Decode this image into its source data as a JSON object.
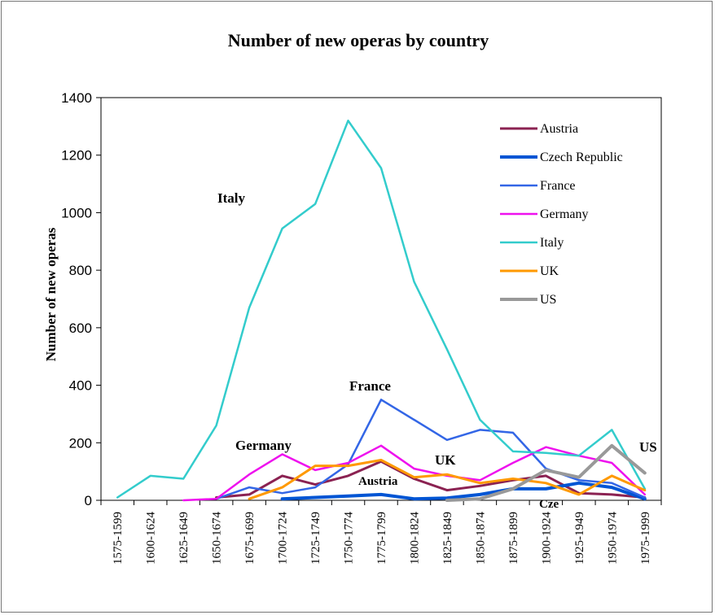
{
  "chart_data": {
    "type": "line",
    "title": "Number of new operas by country",
    "xlabel": "",
    "ylabel": "Number of new operas",
    "ylim": [
      0,
      1400
    ],
    "yticks": [
      0,
      200,
      400,
      600,
      800,
      1000,
      1200,
      1400
    ],
    "categories": [
      "1575-1599",
      "1600-1624",
      "1625-1649",
      "1650-1674",
      "1675-1699",
      "1700-1724",
      "1725-1749",
      "1750-1774",
      "1775-1799",
      "1800-1824",
      "1825-1849",
      "1850-1874",
      "1875-1899",
      "1900-1924",
      "1925-1949",
      "1950-1974",
      "1975-1999"
    ],
    "legend_position": "top-right",
    "grid": false,
    "series": [
      {
        "name": "Austria",
        "color": "#8B2252",
        "width": 3,
        "start": 3,
        "values": [
          null,
          null,
          null,
          10,
          20,
          85,
          55,
          85,
          135,
          75,
          35,
          50,
          70,
          85,
          25,
          20,
          10
        ]
      },
      {
        "name": "Czech Republic",
        "color": "#0055D4",
        "width": 4,
        "start": 5,
        "values": [
          null,
          null,
          null,
          null,
          null,
          5,
          10,
          15,
          20,
          5,
          8,
          20,
          40,
          40,
          60,
          45,
          5
        ]
      },
      {
        "name": "France",
        "color": "#3366E6",
        "width": 2.5,
        "start": 3,
        "values": [
          null,
          null,
          null,
          5,
          45,
          25,
          45,
          125,
          350,
          280,
          210,
          245,
          235,
          110,
          70,
          60,
          10
        ]
      },
      {
        "name": "Germany",
        "color": "#EE11EE",
        "width": 2.5,
        "start": 2,
        "values": [
          null,
          null,
          0,
          5,
          90,
          160,
          105,
          130,
          190,
          110,
          85,
          70,
          130,
          185,
          155,
          130,
          20
        ]
      },
      {
        "name": "Italy",
        "color": "#33CCCC",
        "width": 2.5,
        "start": 0,
        "values": [
          10,
          85,
          75,
          260,
          670,
          945,
          1030,
          1320,
          1155,
          760,
          525,
          280,
          170,
          165,
          155,
          245,
          40
        ]
      },
      {
        "name": "UK",
        "color": "#FF9900",
        "width": 3,
        "start": 4,
        "values": [
          null,
          null,
          null,
          null,
          5,
          45,
          120,
          120,
          140,
          80,
          90,
          60,
          75,
          60,
          20,
          85,
          35
        ]
      },
      {
        "name": "US",
        "color": "#999999",
        "width": 4,
        "start": 10,
        "values": [
          null,
          null,
          null,
          null,
          null,
          null,
          null,
          null,
          null,
          null,
          0,
          5,
          40,
          105,
          80,
          190,
          95
        ]
      }
    ],
    "annotations": [
      "Italy",
      "France",
      "Germany",
      "UK",
      "Austria",
      "US",
      "Cze"
    ]
  }
}
